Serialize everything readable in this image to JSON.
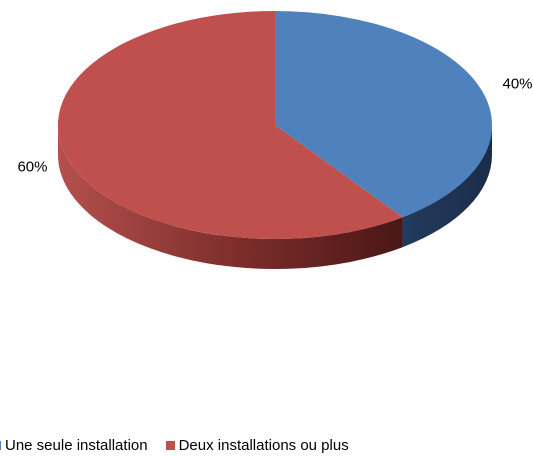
{
  "chart_data": {
    "type": "pie",
    "title": "",
    "style": "3d",
    "categories": [
      "Une seule installation",
      "Deux installations ou plus"
    ],
    "values": [
      40,
      60
    ],
    "data_labels": [
      "40%",
      "60%"
    ],
    "colors": [
      "#4F81BD",
      "#C0504D"
    ],
    "legend_position": "bottom"
  }
}
